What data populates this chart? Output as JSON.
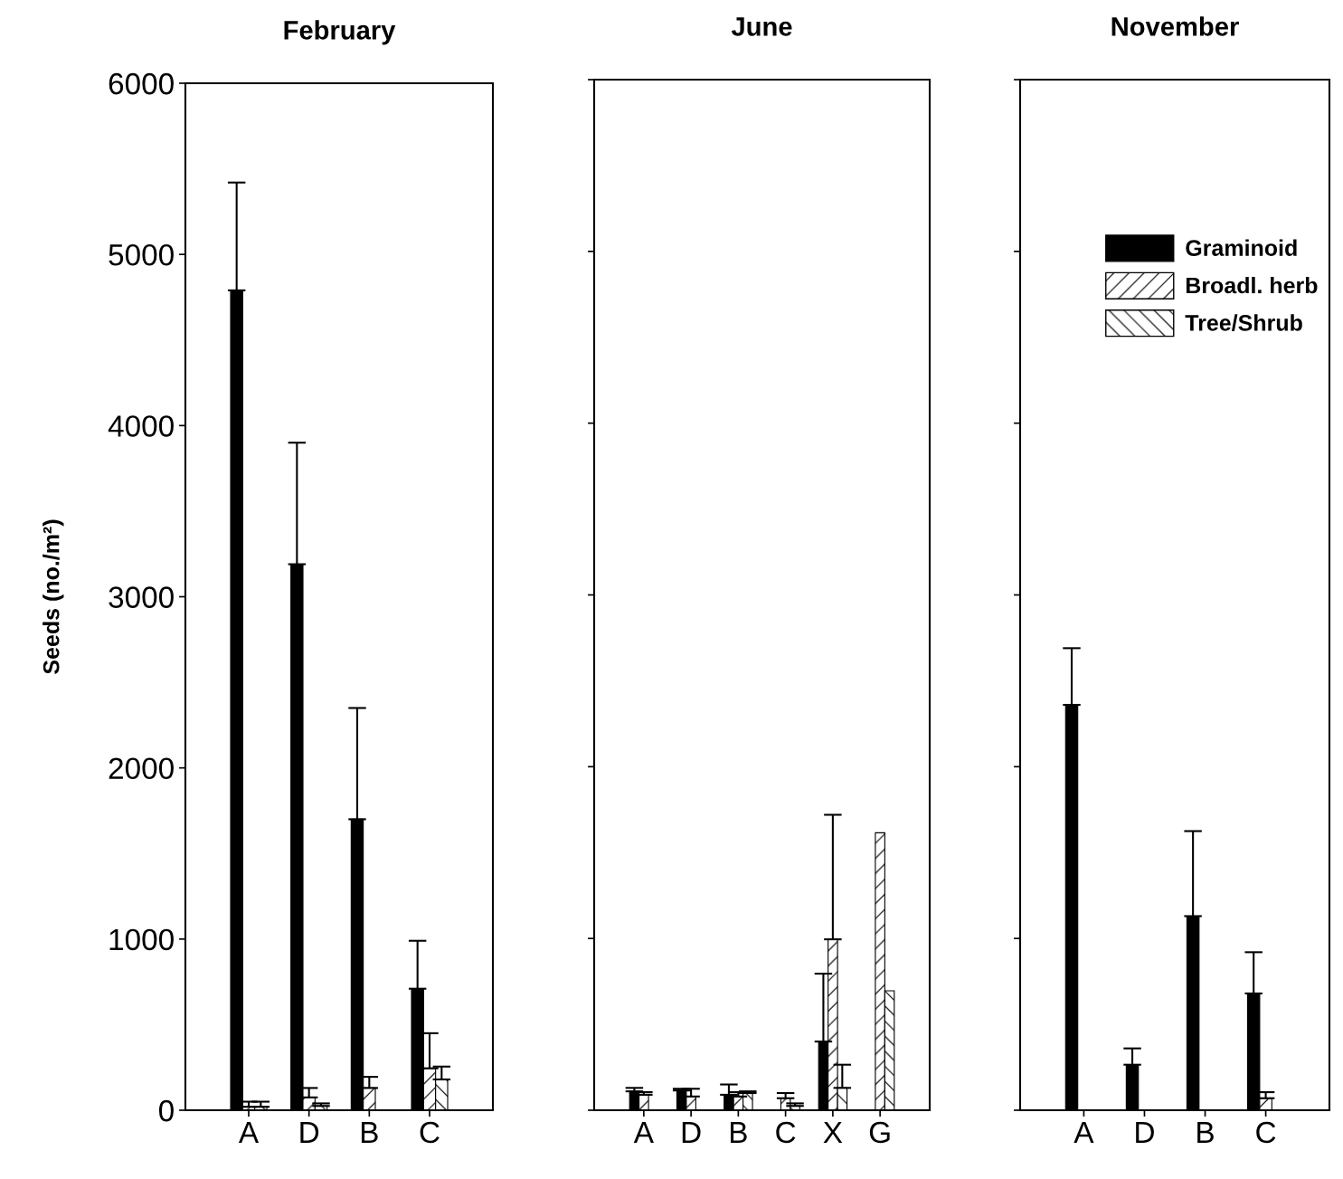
{
  "chart_data": [
    {
      "type": "bar",
      "title": "February",
      "ylabel": "Seeds (no./m²)",
      "categories": [
        "A",
        "D",
        "B",
        "C"
      ],
      "ylim": [
        0,
        6000
      ],
      "yticks": [
        0,
        1000,
        2000,
        3000,
        4000,
        5000,
        6000
      ],
      "legend": false,
      "series": [
        {
          "color": "#000000",
          "values": [
            4790,
            3190,
            1700,
            710
          ],
          "errors": [
            [
              4790,
              5420
            ],
            [
              3190,
              3900
            ],
            [
              1700,
              2350
            ],
            [
              710,
              990
            ]
          ]
        },
        {
          "color": "#000000",
          "values": [
            20,
            75,
            130,
            245
          ],
          "errors": [
            [
              20,
              50
            ],
            [
              75,
              130
            ],
            [
              130,
              195
            ],
            [
              245,
              450
            ]
          ]
        },
        {
          "color": "#000000",
          "values": [
            20,
            25,
            null,
            180
          ],
          "errors": [
            [
              20,
              50
            ],
            [
              25,
              40
            ],
            null,
            [
              180,
              255
            ]
          ]
        }
      ]
    },
    {
      "type": "bar",
      "title": "June",
      "categories": [
        "A",
        "D",
        "B",
        "C",
        "X",
        "G"
      ],
      "ylim": [
        0,
        6000
      ],
      "yticks": [
        0,
        1000,
        2000,
        3000,
        4000,
        5000,
        6000
      ],
      "legend": false,
      "tick_labels": "x",
      "series": [
        {
          "color": "#000000",
          "values": [
            110,
            115,
            90,
            null,
            400,
            null
          ],
          "errors": [
            [
              110,
              130
            ],
            [
              115,
              125
            ],
            [
              90,
              150
            ],
            null,
            [
              400,
              795
            ],
            null
          ]
        },
        {
          "color": "#000000",
          "values": [
            90,
            80,
            80,
            70,
            995,
            1615
          ],
          "errors": [
            [
              90,
              105
            ],
            [
              80,
              125
            ],
            [
              80,
              105
            ],
            [
              70,
              100
            ],
            [
              995,
              1720
            ],
            null
          ]
        },
        {
          "color": "#000000",
          "values": [
            null,
            null,
            100,
            25,
            130,
            695
          ],
          "errors": [
            null,
            null,
            [
              100,
              110
            ],
            [
              25,
              40
            ],
            [
              130,
              265
            ],
            null
          ]
        }
      ]
    },
    {
      "type": "bar",
      "title": "November",
      "categories": [
        "A",
        "D",
        "B",
        "C"
      ],
      "ylim": [
        0,
        6000
      ],
      "yticks": [
        0,
        1000,
        2000,
        3000,
        4000,
        5000,
        6000
      ],
      "legend": "top right",
      "tick_labels": "x",
      "series": [
        {
          "name": "Graminoid",
          "color": "#000000",
          "values": [
            2360,
            265,
            1130,
            680
          ],
          "errors": [
            [
              2360,
              2690
            ],
            [
              265,
              360
            ],
            [
              1130,
              1625
            ],
            [
              680,
              920
            ]
          ]
        },
        {
          "name": "Broadl. herb",
          "color": "#000000",
          "values": [
            null,
            null,
            null,
            70
          ],
          "errors": [
            null,
            null,
            null,
            [
              70,
              105
            ]
          ]
        },
        {
          "name": "Tree/Shrub",
          "color": "#000000",
          "values": [
            null,
            null,
            null,
            null
          ],
          "errors": [
            null,
            null,
            null,
            null
          ]
        }
      ]
    }
  ]
}
